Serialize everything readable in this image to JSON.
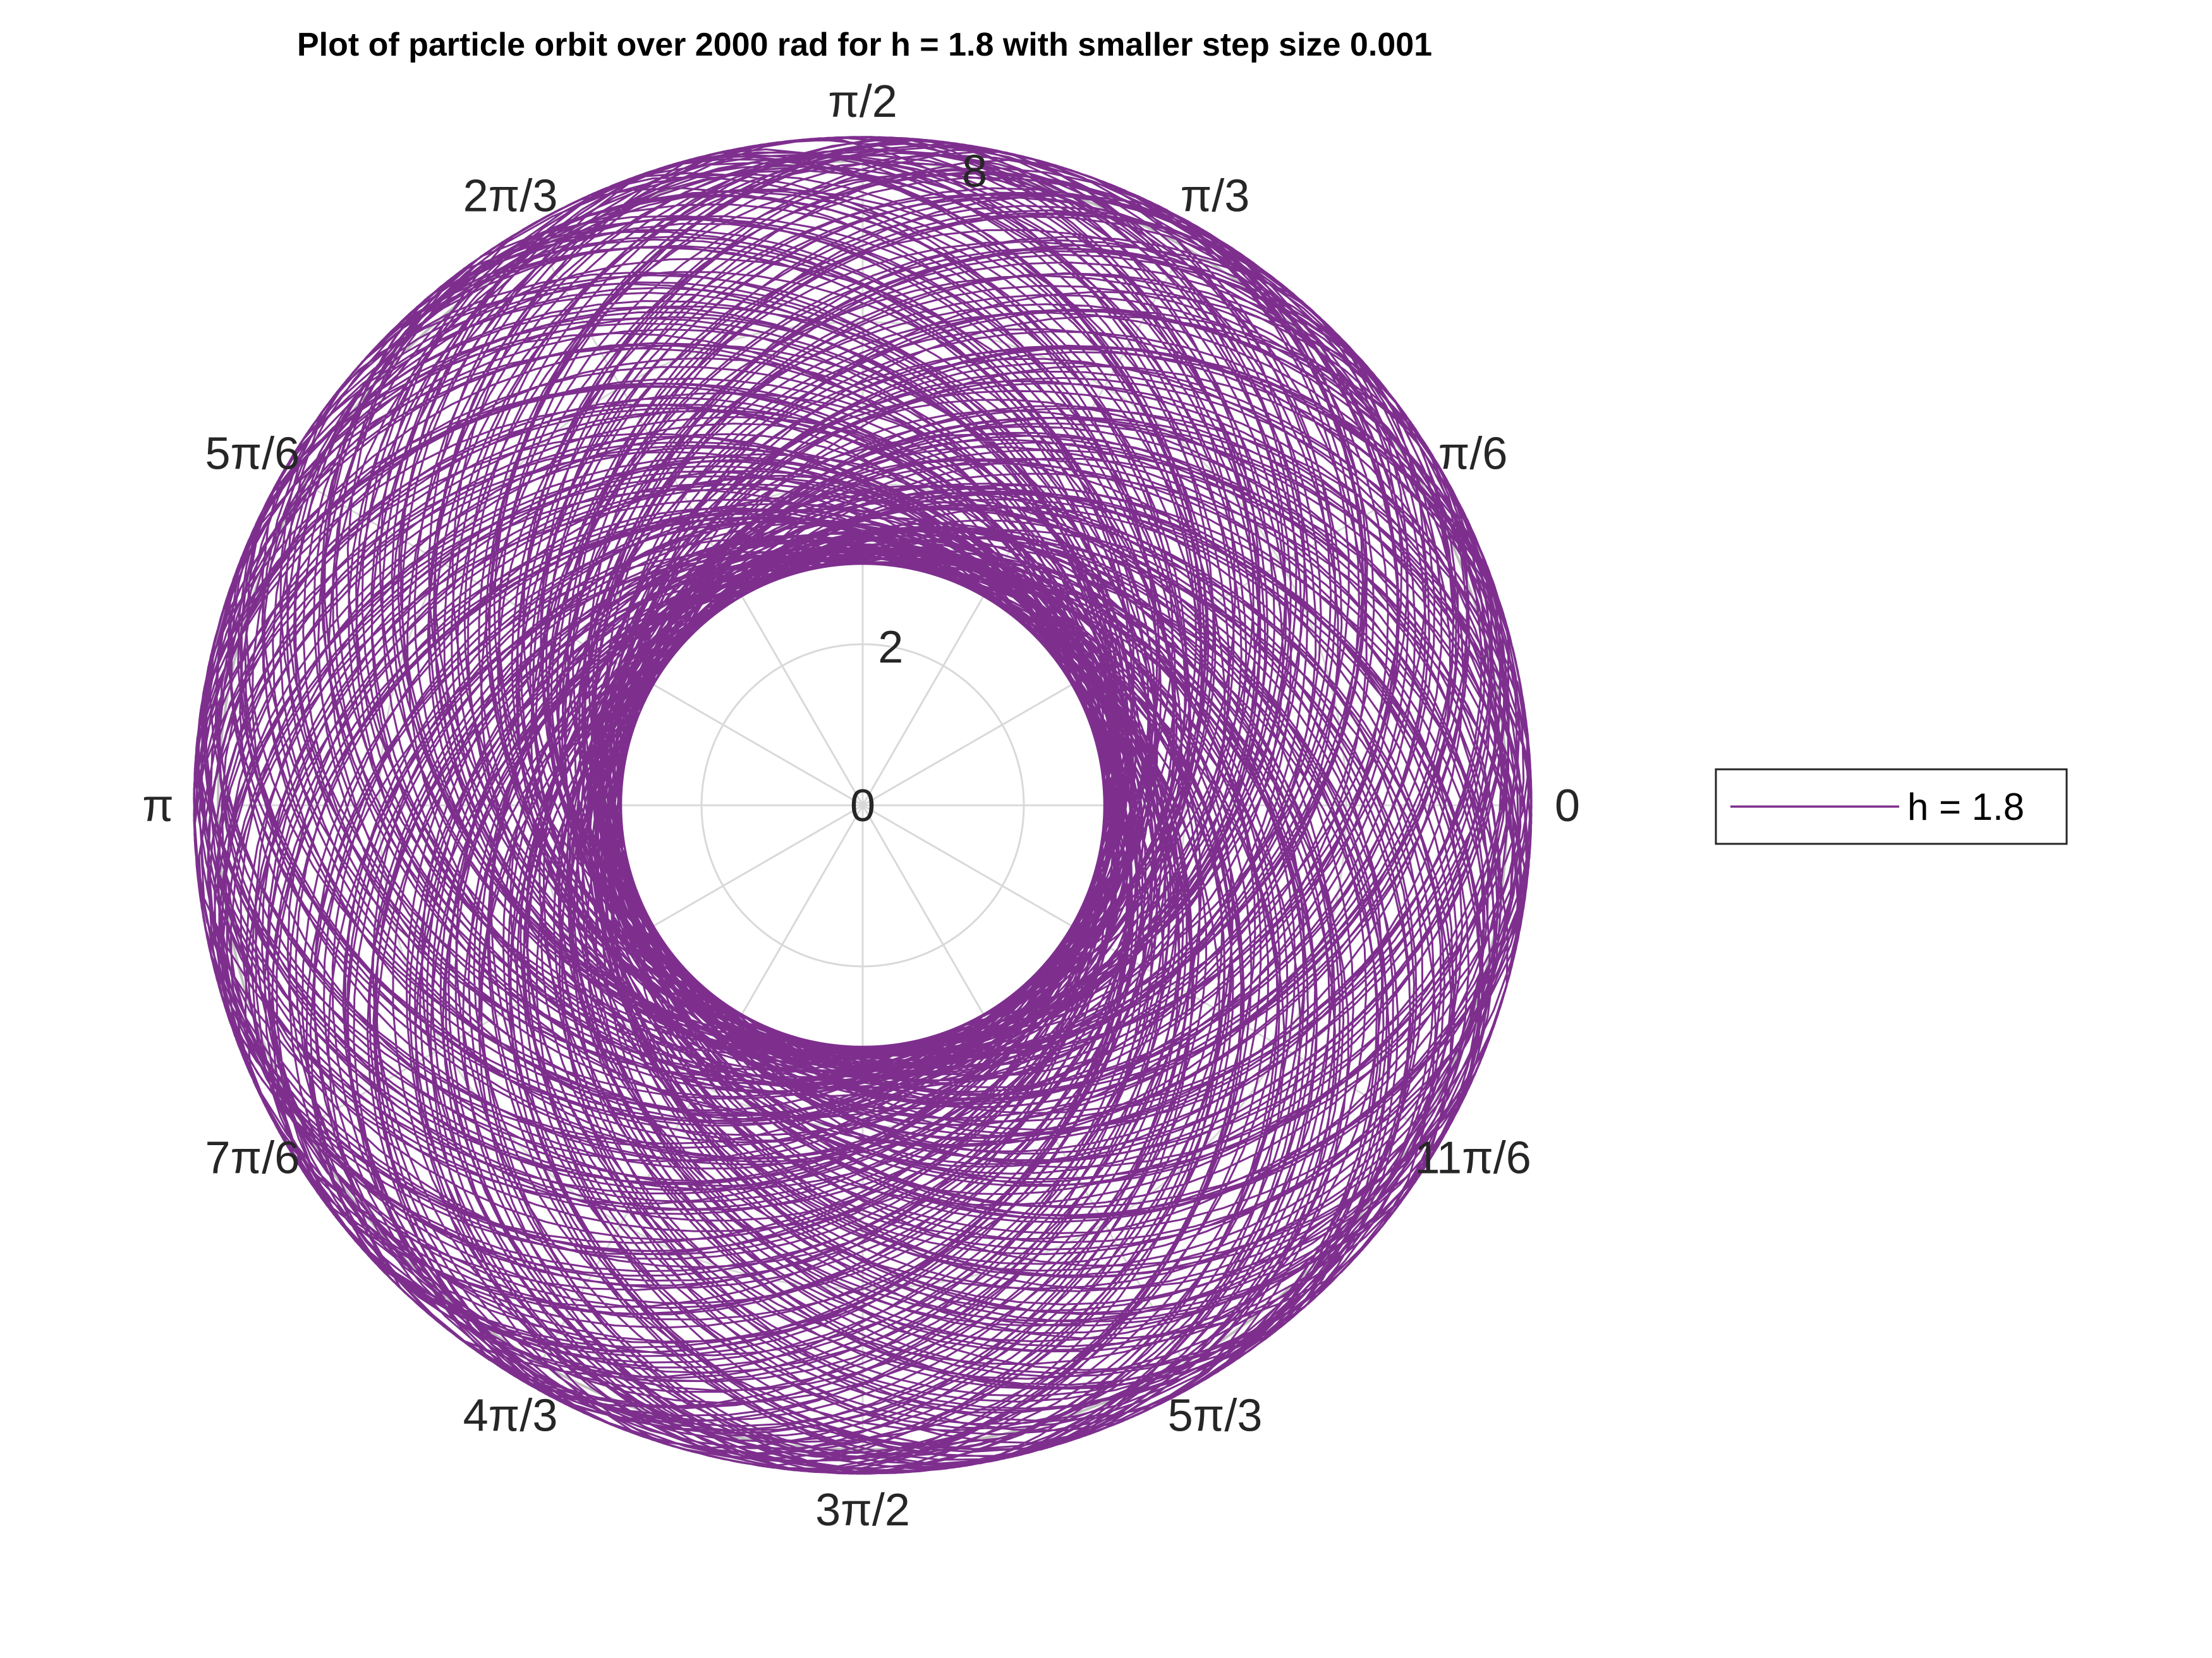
{
  "chart_data": {
    "type": "line",
    "coordinate_system": "polar",
    "title": "Plot of particle orbit over 2000 rad for h = 1.8 with smaller step size 0.001",
    "theta_ticks": [
      "0",
      "π/6",
      "π/3",
      "π/2",
      "2π/3",
      "5π/6",
      "π",
      "7π/6",
      "4π/3",
      "3π/2",
      "5π/3",
      "11π/6"
    ],
    "theta_tick_values_deg": [
      0,
      30,
      60,
      90,
      120,
      150,
      180,
      210,
      240,
      270,
      300,
      330
    ],
    "r_ticks": [
      "0",
      "2",
      "8"
    ],
    "r_tick_values": [
      0,
      2,
      8
    ],
    "r_gridlines": [
      0,
      2,
      4,
      6,
      8
    ],
    "rlim": [
      0,
      8
    ],
    "theta_range_rad": [
      0,
      2000
    ],
    "grid": true,
    "legend_position": "right",
    "series": [
      {
        "name": "h = 1.8",
        "color": "#7E2F8E",
        "r_min": 3.0,
        "r_max": 8.3,
        "description_of_shape": "dense precessing orbit filling annulus"
      }
    ]
  },
  "colors": {
    "series": "#7E2F8E",
    "grid": "#d9d9d9",
    "outer_circle": "#bfbfbf",
    "text": "#262626"
  }
}
